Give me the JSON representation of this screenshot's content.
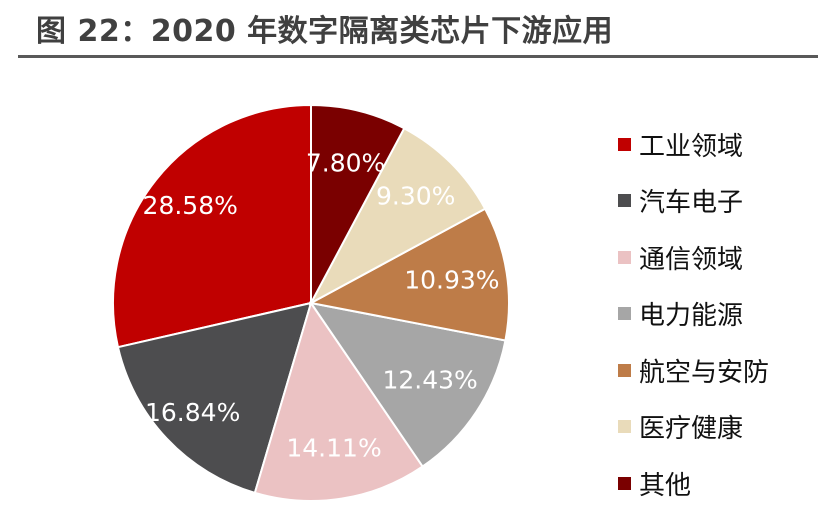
{
  "header": {
    "title": "图 22：2020 年数字隔离类芯片下游应用"
  },
  "chart_data": {
    "type": "pie",
    "start_angle_deg": 0,
    "direction": "counterclockwise-from-top",
    "categories": [
      "工业领域",
      "汽车电子",
      "通信领域",
      "电力能源",
      "航空与安防",
      "医疗健康",
      "其他"
    ],
    "values": [
      28.58,
      16.84,
      14.11,
      12.43,
      10.93,
      9.3,
      7.8
    ],
    "labels": [
      "28.58%",
      "16.84%",
      "14.11%",
      "12.43%",
      "10.93%",
      "9.30%",
      "7.80%"
    ],
    "colors": [
      "#C00000",
      "#4D4D4F",
      "#EBC2C3",
      "#A6A6A6",
      "#BE7C48",
      "#E9DBBA",
      "#7A0000"
    ],
    "label_colors": [
      "#ffffff",
      "#ffffff",
      "#ffffff",
      "#ffffff",
      "#ffffff",
      "#ffffff",
      "#ffffff"
    ],
    "legend_position": "right"
  }
}
